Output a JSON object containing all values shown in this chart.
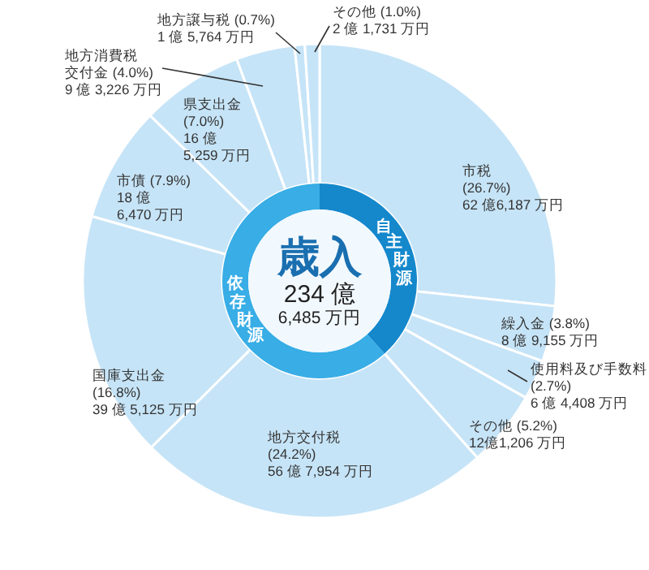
{
  "chart_data": [
    {
      "type": "donut",
      "categories": [
        "市税",
        "繰入金",
        "使用料及び手数料",
        "その他",
        "地方交付税",
        "国庫支出金",
        "市債",
        "県支出金",
        "地方消費税交付金",
        "地方譲与税",
        "その他"
      ],
      "values": [
        26.7,
        3.8,
        2.7,
        5.2,
        24.2,
        16.8,
        7.9,
        7.0,
        4.0,
        0.7,
        1.0
      ],
      "colors": [
        "#c6e4f7",
        "#c6e4f7",
        "#c6e4f7",
        "#c6e4f7",
        "#c6e4f7",
        "#c6e4f7",
        "#c6e4f7",
        "#c6e4f7",
        "#c6e4f7",
        "#c6e4f7",
        "#c6e4f7"
      ],
      "value_labels": [
        "(26.7%)\n62 億6,187 万円",
        "(3.8%)\n8 億 9,155 万円",
        "(2.7%)\n6 億 4,408 万円",
        "(5.2%)\n12億1,206 万円",
        "(24.2%)\n56 億 7,954 万円",
        "(16.8%)\n39 億 5,125 万円",
        "(7.9%)\n18 億\n6,470 万円",
        "(7.0%)\n16 億\n5,259 万円",
        "(4.0%)\n9 億 3,226 万円",
        "(0.7%)\n1 億 5,764 万円",
        "(1.0%)\n2 億 1,731 万円"
      ]
    },
    {
      "type": "donut",
      "title": "歳入",
      "annotations": [
        "234 億",
        "6,485 万円"
      ],
      "categories": [
        "自主財源",
        "依存財源"
      ],
      "values": [
        38.4,
        61.6
      ],
      "colors": [
        "#1588cc",
        "#38ade6"
      ]
    }
  ]
}
